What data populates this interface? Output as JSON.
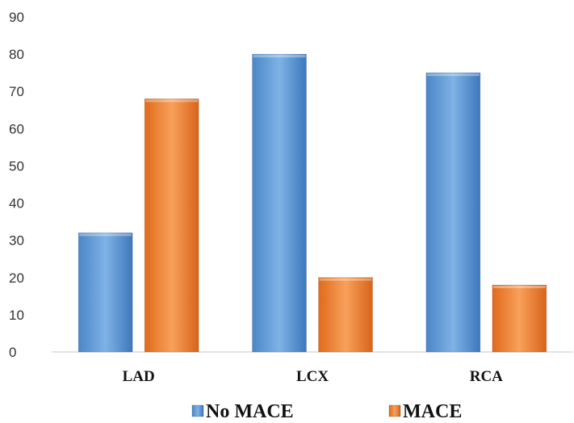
{
  "chart_data": {
    "type": "bar",
    "categories": [
      "LAD",
      "LCX",
      "RCA"
    ],
    "series": [
      {
        "name": "No MACE",
        "values": [
          32,
          80,
          75
        ],
        "color": "#5B9BD5"
      },
      {
        "name": "MACE",
        "values": [
          68,
          20,
          18
        ],
        "color": "#ED7D31"
      }
    ],
    "title": "",
    "xlabel": "",
    "ylabel": "",
    "ylim": [
      0,
      90
    ],
    "yticks": [
      0,
      10,
      20,
      30,
      40,
      50,
      60,
      70,
      80,
      90
    ],
    "grid": false,
    "legend_position": "bottom"
  }
}
